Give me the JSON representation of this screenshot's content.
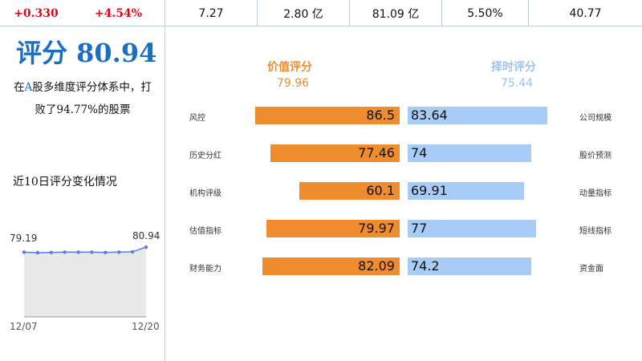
{
  "topbar": {
    "change_abs": "+0.330",
    "change_pct": "+4.54%",
    "price": "7.27",
    "volume": "2.80 亿",
    "amount": "81.09 亿",
    "rate": "5.50%",
    "score_small": "40.77"
  },
  "summary": {
    "title": "评分 80.94",
    "desc_prefix": "在",
    "desc_highlight": "A",
    "desc_rest": "股多维度评分体系中，打败了94.77%的股票",
    "trend_title": "近10日评分变化情况"
  },
  "mini_trend": {
    "start_label": "79.19",
    "end_label": "80.94",
    "date_start": "12/07",
    "date_end": "12/20",
    "values": [
      79.19,
      79.0,
      79.1,
      79.2,
      79.2,
      79.2,
      79.1,
      79.2,
      79.3,
      80.94
    ]
  },
  "chart_data": {
    "type": "bar",
    "left_header": "价值评分",
    "left_score": "79.96",
    "right_header": "择时评分",
    "right_score": "75.44",
    "left_categories": [
      "风控",
      "历史分红",
      "机构评级",
      "估值指标",
      "财务能力"
    ],
    "left_values": [
      86.5,
      77.46,
      60.1,
      79.97,
      82.09
    ],
    "right_categories": [
      "公司规模",
      "股价预测",
      "动量指标",
      "短线指标",
      "资金面"
    ],
    "right_values": [
      83.64,
      74,
      69.91,
      77,
      74.2
    ],
    "colors": {
      "left": "#ef8c2e",
      "right": "#a8ccf6"
    }
  }
}
